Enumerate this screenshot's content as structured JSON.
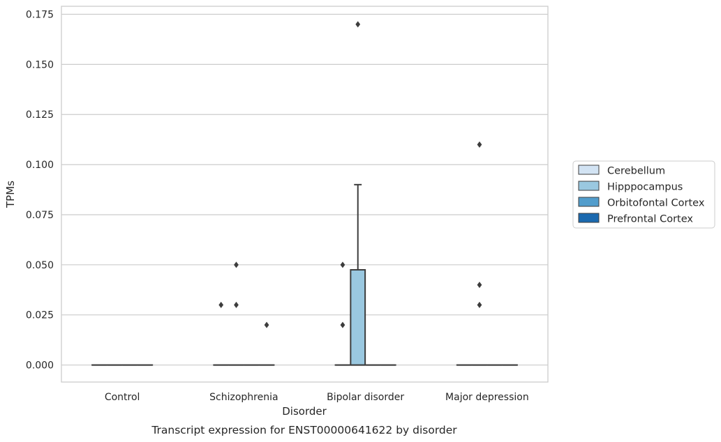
{
  "chart_data": {
    "type": "box",
    "caption": "Transcript expression for ENST00000641622 by disorder",
    "xlabel": "Disorder",
    "ylabel": "TPMs",
    "ylim": [
      -0.0085,
      0.179
    ],
    "yticks": [
      "0.000",
      "0.025",
      "0.050",
      "0.075",
      "0.100",
      "0.125",
      "0.150",
      "0.175"
    ],
    "ytick_values": [
      0,
      0.025,
      0.05,
      0.075,
      0.1,
      0.125,
      0.15,
      0.175
    ],
    "grid": "horizontal",
    "legend_position": "right",
    "categories": [
      "Control",
      "Schizophrenia",
      "Bipolar disorder",
      "Major depression"
    ],
    "series": [
      {
        "name": "Cerebellum",
        "color": "#d2e3f3"
      },
      {
        "name": "Hipppocampus",
        "color": "#9ac8e0"
      },
      {
        "name": "Orbitofontal Cortex",
        "color": "#529dcc"
      },
      {
        "name": "Prefrontal Cortex",
        "color": "#1b69af"
      }
    ],
    "boxes": [
      {
        "category": "Control",
        "series": "Cerebellum",
        "q1": 0,
        "median": 0,
        "q3": 0,
        "whislo": 0,
        "whishi": 0,
        "fliers": []
      },
      {
        "category": "Control",
        "series": "Hipppocampus",
        "q1": 0,
        "median": 0,
        "q3": 0,
        "whislo": 0,
        "whishi": 0,
        "fliers": []
      },
      {
        "category": "Control",
        "series": "Orbitofontal Cortex",
        "q1": 0,
        "median": 0,
        "q3": 0,
        "whislo": 0,
        "whishi": 0,
        "fliers": []
      },
      {
        "category": "Control",
        "series": "Prefrontal Cortex",
        "q1": 0,
        "median": 0,
        "q3": 0,
        "whislo": 0,
        "whishi": 0,
        "fliers": []
      },
      {
        "category": "Schizophrenia",
        "series": "Cerebellum",
        "q1": 0,
        "median": 0,
        "q3": 0,
        "whislo": 0,
        "whishi": 0,
        "fliers": [
          0.03
        ]
      },
      {
        "category": "Schizophrenia",
        "series": "Hipppocampus",
        "q1": 0,
        "median": 0,
        "q3": 0,
        "whislo": 0,
        "whishi": 0,
        "fliers": [
          0.03,
          0.05
        ]
      },
      {
        "category": "Schizophrenia",
        "series": "Orbitofontal Cortex",
        "q1": 0,
        "median": 0,
        "q3": 0,
        "whislo": 0,
        "whishi": 0,
        "fliers": []
      },
      {
        "category": "Schizophrenia",
        "series": "Prefrontal Cortex",
        "q1": 0,
        "median": 0,
        "q3": 0,
        "whislo": 0,
        "whishi": 0,
        "fliers": [
          0.02
        ]
      },
      {
        "category": "Bipolar disorder",
        "series": "Cerebellum",
        "q1": 0,
        "median": 0,
        "q3": 0,
        "whislo": 0,
        "whishi": 0,
        "fliers": [
          0.02,
          0.05
        ]
      },
      {
        "category": "Bipolar disorder",
        "series": "Hipppocampus",
        "q1": 0,
        "median": 0,
        "q3": 0.0475,
        "whislo": 0,
        "whishi": 0.09,
        "fliers": [
          0.17
        ]
      },
      {
        "category": "Bipolar disorder",
        "series": "Orbitofontal Cortex",
        "q1": 0,
        "median": 0,
        "q3": 0,
        "whislo": 0,
        "whishi": 0,
        "fliers": []
      },
      {
        "category": "Bipolar disorder",
        "series": "Prefrontal Cortex",
        "q1": 0,
        "median": 0,
        "q3": 0,
        "whislo": 0,
        "whishi": 0,
        "fliers": []
      },
      {
        "category": "Major depression",
        "series": "Cerebellum",
        "q1": 0,
        "median": 0,
        "q3": 0,
        "whislo": 0,
        "whishi": 0,
        "fliers": []
      },
      {
        "category": "Major depression",
        "series": "Hipppocampus",
        "q1": 0,
        "median": 0,
        "q3": 0,
        "whislo": 0,
        "whishi": 0,
        "fliers": [
          0.03,
          0.04,
          0.11
        ]
      },
      {
        "category": "Major depression",
        "series": "Orbitofontal Cortex",
        "q1": 0,
        "median": 0,
        "q3": 0,
        "whislo": 0,
        "whishi": 0,
        "fliers": []
      },
      {
        "category": "Major depression",
        "series": "Prefrontal Cortex",
        "q1": 0,
        "median": 0,
        "q3": 0,
        "whislo": 0,
        "whishi": 0,
        "fliers": []
      }
    ],
    "box_edge_color": "#3d3d3d",
    "grid_color": "#cccccc",
    "frame_color": "#cccccc"
  }
}
